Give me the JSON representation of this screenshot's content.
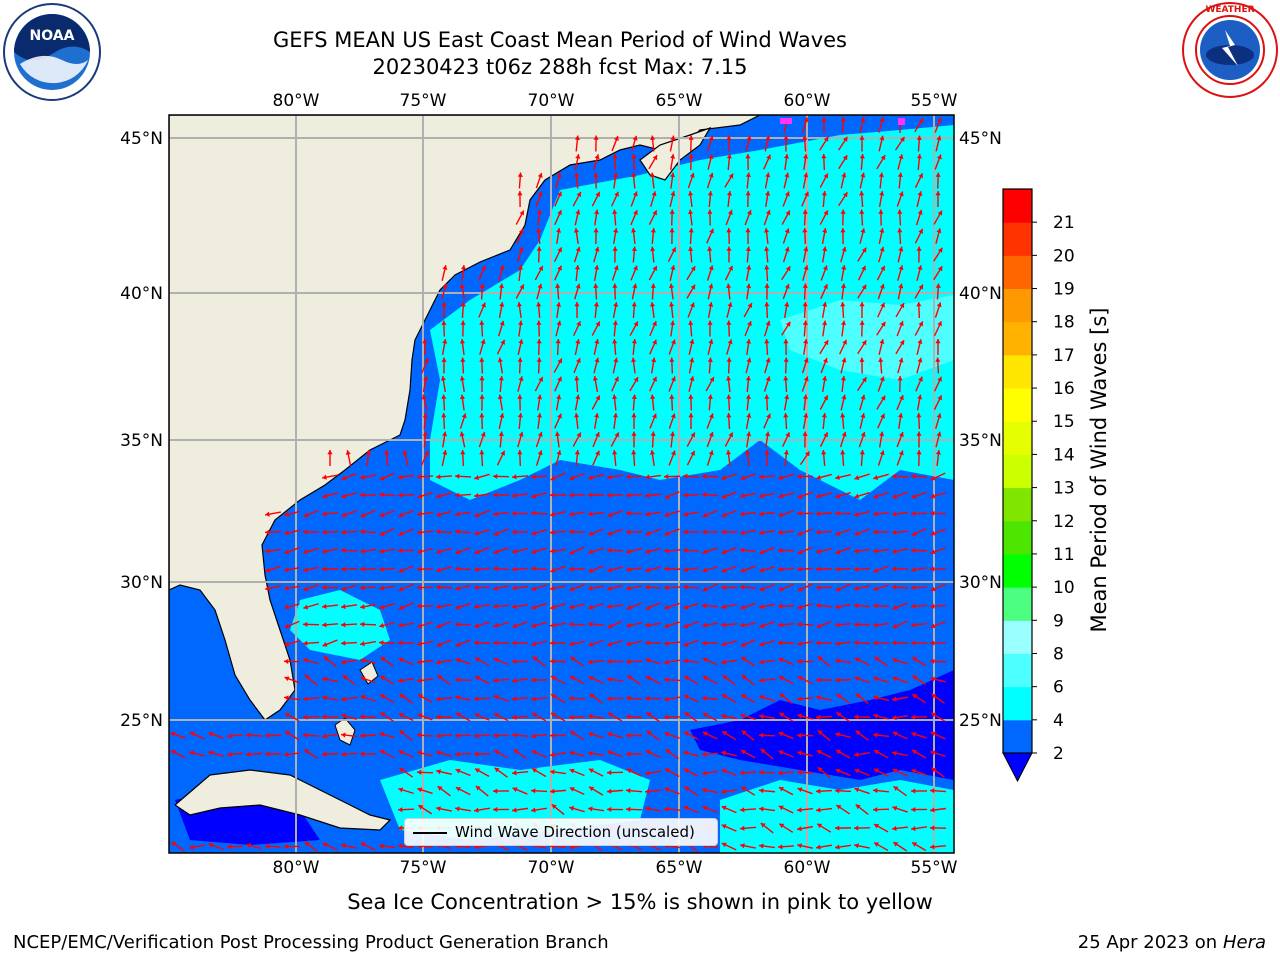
{
  "title": {
    "line1": "GEFS MEAN US East Coast Mean Period of Wind Waves",
    "line2": "20230423 t06z 288h fcst   Max: 7.15"
  },
  "logos": {
    "left": {
      "name": "noaa-logo",
      "text": "NOAA",
      "ring_text": "NATIONAL OCEANIC AND ATMOSPHERIC ADMINISTRATION · U.S. DEPARTMENT OF COMMERCE"
    },
    "right": {
      "name": "nws-logo",
      "ring_text": "NATIONAL WEATHER SERVICE"
    }
  },
  "map": {
    "lon_labels": [
      "80°W",
      "75°W",
      "70°W",
      "65°W",
      "60°W",
      "55°W"
    ],
    "lat_labels": [
      "45°N",
      "40°N",
      "35°N",
      "30°N",
      "25°N"
    ],
    "colors": {
      "land": "#efedde",
      "gridline": "#b0b0b0",
      "arrow": "#ff0000",
      "coast": "#000000"
    },
    "legend": {
      "label": "Wind Wave Direction (unscaled)"
    }
  },
  "colorbar": {
    "title": "Mean Period of Wind Waves [s]",
    "labels": [
      "2",
      "4",
      "6",
      "8",
      "9",
      "10",
      "11",
      "12",
      "13",
      "14",
      "15",
      "16",
      "17",
      "18",
      "19",
      "20",
      "21"
    ],
    "colors": [
      "#0068ff",
      "#00ffff",
      "#4dffff",
      "#99ffff",
      "#4dff80",
      "#00ff00",
      "#4de600",
      "#80e600",
      "#ccff00",
      "#e6ff00",
      "#ffff00",
      "#ffe600",
      "#ffb300",
      "#ff9900",
      "#ff6600",
      "#ff3300",
      "#ff0000"
    ],
    "extend_color": "#0000ff"
  },
  "subtitle": "Sea Ice Concentration > 15% is shown in pink to yellow",
  "footer": {
    "left": "NCEP/EMC/Verification Post Processing Product Generation Branch",
    "right_prefix": "25 Apr 2023 on ",
    "right_italic": "Hera"
  }
}
